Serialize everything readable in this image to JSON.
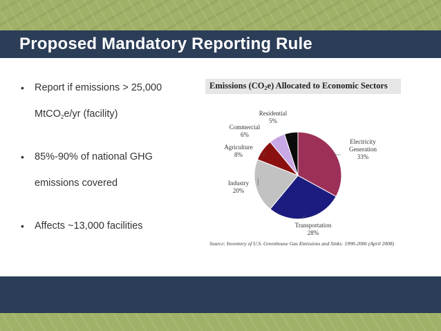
{
  "slide": {
    "title": "Proposed Mandatory Reporting Rule"
  },
  "bullets": {
    "item1_part1": "Report if emissions > 25,000",
    "item1_part2a": "MtCO",
    "item1_sub": "2",
    "item1_part2b": "e/yr (facility)",
    "item2_line1": "85%-90% of national GHG",
    "item2_line2": "emissions covered",
    "item3": "Affects ~13,000 facilities"
  },
  "chart_data": {
    "type": "pie",
    "title_part1": "Emissions (CO",
    "title_sub": "2",
    "title_part2": "e) Allocated to Economic Sectors",
    "source": "Source: Inventory of U.S. Greenhouse Gas Emissions and Sinks: 1990-2006 (April 2008)",
    "slices": [
      {
        "label_line1": "Electricity",
        "label_line2": "Generation",
        "value_label": "33%",
        "value": 33,
        "color": "#9c3058"
      },
      {
        "label_line1": "Transportation",
        "label_line2": "",
        "value_label": "28%",
        "value": 28,
        "color": "#1c1c80"
      },
      {
        "label_line1": "Industry",
        "label_line2": "",
        "value_label": "20%",
        "value": 20,
        "color": "#c2c2c2"
      },
      {
        "label_line1": "Agriculture",
        "label_line2": "",
        "value_label": "8%",
        "value": 8,
        "color": "#8b1010"
      },
      {
        "label_line1": "Commercial",
        "label_line2": "",
        "value_label": "6%",
        "value": 6,
        "color": "#c9a8e6"
      },
      {
        "label_line1": "Residential",
        "label_line2": "",
        "value_label": "5%",
        "value": 5,
        "color": "#0a0a0a"
      }
    ]
  }
}
